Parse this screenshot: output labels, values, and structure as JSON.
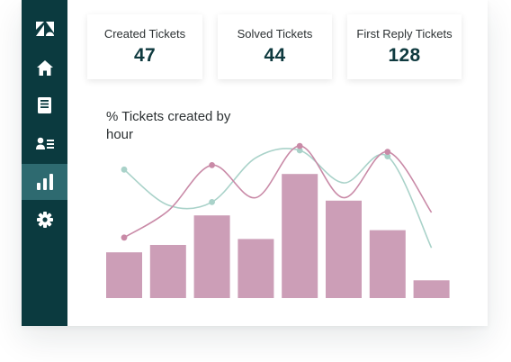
{
  "nav": {
    "items": [
      {
        "icon": "zendesk-logo-icon",
        "active": false
      },
      {
        "icon": "home-icon",
        "active": false
      },
      {
        "icon": "inbox-icon",
        "active": false
      },
      {
        "icon": "contacts-icon",
        "active": false
      },
      {
        "icon": "bar-chart-icon",
        "active": true
      },
      {
        "icon": "gear-icon",
        "active": false
      }
    ]
  },
  "stats": [
    {
      "label": "Created Tickets",
      "value": "47"
    },
    {
      "label": "Solved Tickets",
      "value": "44"
    },
    {
      "label": "First Reply Tickets",
      "value": "128"
    }
  ],
  "colors": {
    "sidebar": "#0b3a3f",
    "sidebar_active": "#2e6a70",
    "bar": "#cc9eb7",
    "line_pink": "#c98aa7",
    "line_teal": "#a9d2c9",
    "value_text": "#0f3a3f"
  },
  "chart_data": {
    "type": "bar",
    "title": "% Tickets created by hour",
    "categories": [
      "",
      "",
      "",
      "",
      "",
      "",
      "",
      ""
    ],
    "ylim": [
      0,
      100
    ],
    "grid": false,
    "bars": [
      31,
      36,
      56,
      40,
      84,
      66,
      46,
      12
    ],
    "lines": [
      {
        "name": "",
        "color": "#a9d2c9",
        "values": [
          87,
          63,
          65,
          95,
          100,
          78,
          96,
          34
        ]
      },
      {
        "name": "",
        "color": "#c98aa7",
        "values": [
          41,
          59,
          90,
          68,
          103,
          68,
          99,
          58
        ]
      }
    ]
  }
}
